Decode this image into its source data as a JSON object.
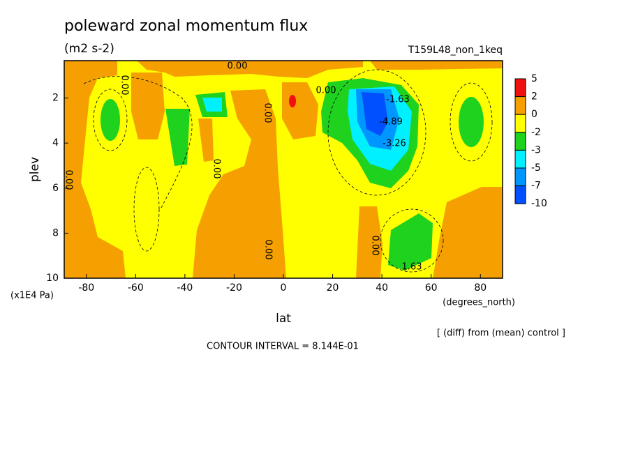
{
  "chart_data": {
    "type": "contour",
    "title": "poleward zonal momentum flux",
    "subtitle": "(m2 s-2)",
    "run_label": "T159L48_non_1keq",
    "xlabel": "lat",
    "xunits": "(degrees_north)",
    "ylabel": "plev",
    "yunits": "(x1E4 Pa)",
    "note": "[ (diff) from (mean) control ]",
    "contour_interval": "CONTOUR INTERVAL = 8.144E-01",
    "xlim": [
      -89,
      89
    ],
    "xticks": [
      -80,
      -60,
      -40,
      -20,
      0,
      20,
      40,
      60,
      80
    ],
    "ylim": [
      10,
      0.34
    ],
    "yticks": [
      2,
      4,
      6,
      8,
      10
    ],
    "colorbar": {
      "levels": [
        5,
        2,
        0,
        -2,
        -3,
        -5,
        -7,
        -10
      ],
      "colors": [
        "#f01010",
        "#f5a000",
        "#ffff00",
        "#1ed21e",
        "#00f0ff",
        "#0096ff",
        "#0050ff"
      ]
    },
    "contour_labels": [
      {
        "value": 0,
        "label": "0.00"
      },
      {
        "value": 0,
        "label": "0.00"
      },
      {
        "value": 0,
        "label": "0.00"
      },
      {
        "value": 0,
        "label": "0.00"
      },
      {
        "value": 0,
        "label": "0.00"
      },
      {
        "value": 0,
        "label": "0.00"
      },
      {
        "value": 0,
        "label": "0.00"
      },
      {
        "value": 0,
        "label": "0.00"
      },
      {
        "value": -1.63,
        "label": "-1.63"
      },
      {
        "value": -4.89,
        "label": "-4.89"
      },
      {
        "value": -3.26,
        "label": "-3.26"
      },
      {
        "value": 1.63,
        "label": "1.63"
      }
    ]
  }
}
